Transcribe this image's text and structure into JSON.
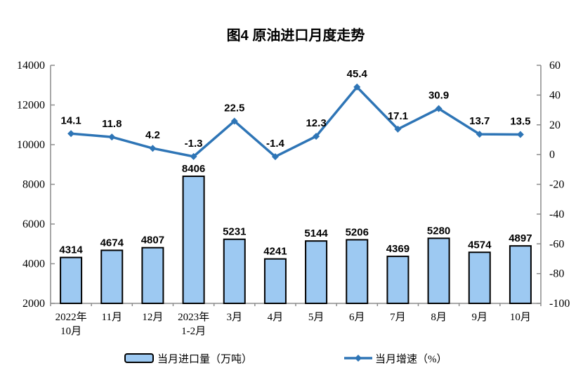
{
  "chart_data": {
    "type": "bar+line combo",
    "title": "图4  原油进口月度走势",
    "categories": [
      [
        "2022年",
        "10月"
      ],
      [
        "11月"
      ],
      [
        "12月"
      ],
      [
        "2023年",
        "1-2月"
      ],
      [
        "3月"
      ],
      [
        "4月"
      ],
      [
        "5月"
      ],
      [
        "6月"
      ],
      [
        "7月"
      ],
      [
        "8月"
      ],
      [
        "9月"
      ],
      [
        "10月"
      ]
    ],
    "series": [
      {
        "name": "当月进口量（万吨）",
        "type": "bar",
        "yaxis": "left",
        "values": [
          4314,
          4674,
          4807,
          8406,
          5231,
          4241,
          5144,
          5206,
          4369,
          5280,
          4574,
          4897
        ]
      },
      {
        "name": "当月增速（%）",
        "type": "line",
        "yaxis": "right",
        "values": [
          14.1,
          11.8,
          4.2,
          -1.3,
          22.5,
          -1.4,
          12.3,
          45.4,
          17.1,
          30.9,
          13.7,
          13.5
        ]
      }
    ],
    "left_axis": {
      "min": 2000,
      "max": 14000,
      "step": 2000,
      "ticks": [
        "14000",
        "12000",
        "10000",
        "8000",
        "6000",
        "4000",
        "2000"
      ]
    },
    "right_axis": {
      "min": -100,
      "max": 60,
      "step": 20,
      "ticks": [
        "60",
        "40",
        "20",
        "0",
        "-20",
        "-40",
        "-60",
        "-80",
        "-100"
      ]
    },
    "grid": "off",
    "legend_position": "bottom",
    "colors": {
      "bar_fill": "#9DC9F2",
      "bar_stroke": "#000000",
      "line": "#2E75B6",
      "axis": "#8C8C8C",
      "text": "#000000",
      "background": "#FFFFFF"
    }
  }
}
